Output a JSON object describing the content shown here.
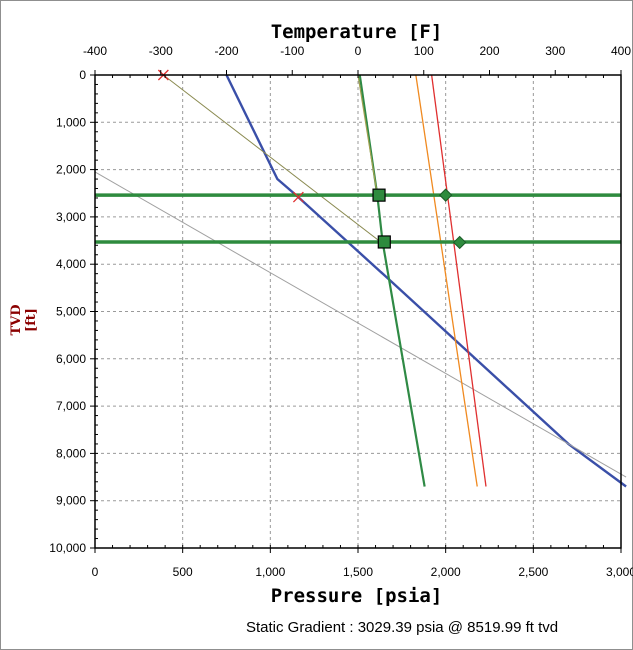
{
  "chart_data": {
    "type": "line",
    "title_top": "Temperature [F]",
    "xlabel": "Pressure [psia]",
    "ylabel": "TVD [ft]",
    "footer": "Static Gradient : 3029.39 psia @ 8519.99 ft tvd",
    "pressure_axis": {
      "range": [
        0,
        3000
      ],
      "ticks": [
        0,
        500,
        1000,
        1500,
        2000,
        2500,
        3000
      ],
      "tick_labels": [
        "0",
        "500",
        "1,000",
        "1,500",
        "2,000",
        "2,500",
        "3,000"
      ]
    },
    "temperature_axis": {
      "range": [
        -400,
        400
      ],
      "ticks": [
        -400,
        -300,
        -200,
        -100,
        0,
        100,
        200,
        300,
        400
      ],
      "tick_labels": [
        "-400",
        "-300",
        "-200",
        "-100",
        "0",
        "100",
        "200",
        "300",
        "400"
      ]
    },
    "depth_axis": {
      "range": [
        0,
        10000
      ],
      "inverted": true,
      "ticks": [
        0,
        1000,
        2000,
        3000,
        4000,
        5000,
        6000,
        7000,
        8000,
        9000,
        10000
      ],
      "tick_labels": [
        "0",
        "1,000",
        "2,000",
        "3,000",
        "4,000",
        "5,000",
        "6,000",
        "7,000",
        "8,000",
        "9,000",
        "10,000"
      ]
    },
    "grid": true,
    "series": [
      {
        "color": "#3a4fa8",
        "width": 2.4,
        "points": [
          [
            750,
            0
          ],
          [
            1040,
            2200
          ],
          [
            1150,
            2550
          ],
          [
            1700,
            4400
          ],
          [
            2700,
            7800
          ],
          [
            3029,
            8700
          ]
        ]
      },
      {
        "color": "#a0a0a0",
        "width": 1,
        "points": [
          [
            0,
            2050
          ],
          [
            3029,
            8500
          ]
        ]
      },
      {
        "color": "#8a8a50",
        "width": 1,
        "points": [
          [
            390,
            0
          ],
          [
            1640,
            3560
          ]
        ]
      },
      {
        "color": "#2f8a45",
        "width": 2.2,
        "points": [
          [
            1510,
            0
          ],
          [
            1610,
            2540
          ],
          [
            1640,
            3520
          ],
          [
            1880,
            8700
          ]
        ]
      },
      {
        "color": "#a0a050",
        "width": 1.2,
        "points": [
          [
            1500,
            0
          ],
          [
            1610,
            2540
          ]
        ]
      },
      {
        "color": "#f08a20",
        "width": 1.3,
        "points": [
          [
            1830,
            0
          ],
          [
            2180,
            8700
          ]
        ]
      },
      {
        "color": "#e03030",
        "width": 1.3,
        "points": [
          [
            1920,
            0
          ],
          [
            2230,
            8700
          ]
        ]
      }
    ],
    "horizontal_lines": [
      {
        "depth": 2540,
        "color": "#2e8b3e"
      },
      {
        "depth": 3530,
        "color": "#2e8b3e"
      }
    ],
    "markers": [
      {
        "shape": "x",
        "color": "#e03030",
        "x": 390,
        "y": 0
      },
      {
        "shape": "x",
        "color": "#e03030",
        "x": 1160,
        "y": 2580
      },
      {
        "shape": "square",
        "color": "#2e8b3e",
        "x": 1620,
        "y": 2540
      },
      {
        "shape": "square",
        "color": "#2e8b3e",
        "x": 1650,
        "y": 3530
      },
      {
        "shape": "diamond",
        "color": "#2e8b3e",
        "x": 2000,
        "y": 2540
      },
      {
        "shape": "diamond",
        "color": "#2e8b3e",
        "x": 2080,
        "y": 3540
      }
    ]
  }
}
